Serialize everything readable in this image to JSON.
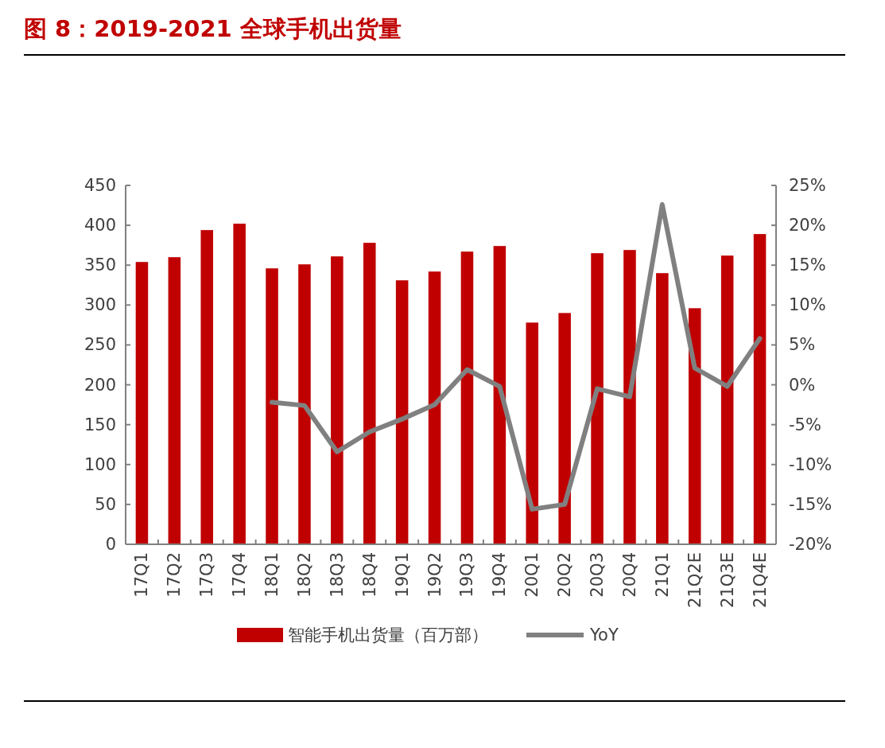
{
  "chart_data": {
    "type": "bar",
    "title": "图 8：2019-2021 全球手机出货量",
    "categories": [
      "17Q1",
      "17Q2",
      "17Q3",
      "17Q4",
      "18Q1",
      "18Q2",
      "18Q3",
      "18Q4",
      "19Q1",
      "19Q2",
      "19Q3",
      "19Q4",
      "20Q1",
      "20Q2",
      "20Q3",
      "20Q4",
      "21Q1",
      "21Q2E",
      "21Q3E",
      "21Q4E"
    ],
    "series": [
      {
        "name": "智能手机出货量（百万部）",
        "color": "#c00000",
        "values": [
          354,
          360,
          394,
          402,
          346,
          351,
          361,
          378,
          331,
          342,
          367,
          374,
          278,
          290,
          365,
          369,
          340,
          296,
          362,
          389
        ]
      },
      {
        "name": "YoY",
        "type": "line",
        "axis": "y2",
        "color": "#808080",
        "values": [
          null,
          null,
          null,
          null,
          -2.2,
          -2.6,
          -8.4,
          -5.9,
          -4.3,
          -2.5,
          1.9,
          -0.2,
          -15.6,
          -15.0,
          -0.5,
          -1.5,
          22.6,
          2.1,
          -0.2,
          5.8
        ]
      }
    ],
    "ylim": [
      0,
      450
    ],
    "yticks": [
      0,
      50,
      100,
      150,
      200,
      250,
      300,
      350,
      400,
      450
    ],
    "y2lim": [
      -20,
      25
    ],
    "y2ticks": [
      {
        "value": -20,
        "label": "-20%"
      },
      {
        "value": -15,
        "label": "-15%"
      },
      {
        "value": -10,
        "label": "-10%"
      },
      {
        "value": -5,
        "label": "-5%"
      },
      {
        "value": 0,
        "label": "0%"
      },
      {
        "value": 5,
        "label": "5%"
      },
      {
        "value": 10,
        "label": "10%"
      },
      {
        "value": 15,
        "label": "15%"
      },
      {
        "value": 20,
        "label": "20%"
      },
      {
        "value": 25,
        "label": "25%"
      }
    ],
    "legend": "bottom",
    "grid": false
  }
}
